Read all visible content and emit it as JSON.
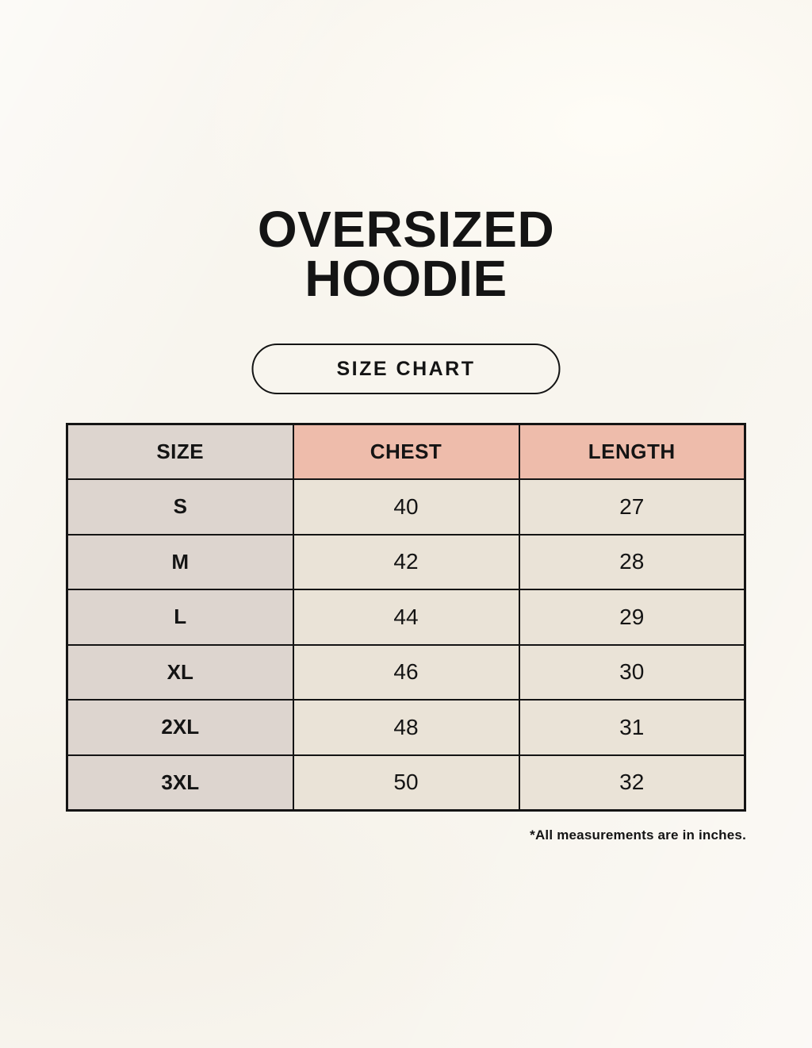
{
  "page": {
    "title": "OVERSIZED HOODIE",
    "badge_label": "SIZE CHART",
    "footnote": "*All measurements are in inches."
  },
  "table": {
    "headers": [
      "SIZE",
      "CHEST",
      "LENGTH"
    ],
    "rows": [
      {
        "size": "S",
        "chest": "40",
        "length": "27"
      },
      {
        "size": "M",
        "chest": "42",
        "length": "28"
      },
      {
        "size": "L",
        "chest": "44",
        "length": "29"
      },
      {
        "size": "XL",
        "chest": "46",
        "length": "30"
      },
      {
        "size": "2XL",
        "chest": "48",
        "length": "31"
      },
      {
        "size": "3XL",
        "chest": "50",
        "length": "32"
      }
    ]
  },
  "chart_data": {
    "type": "table",
    "title": "OVERSIZED HOODIE",
    "subtitle": "SIZE CHART",
    "columns": [
      "SIZE",
      "CHEST",
      "LENGTH"
    ],
    "rows": [
      [
        "S",
        40,
        27
      ],
      [
        "M",
        42,
        28
      ],
      [
        "L",
        44,
        29
      ],
      [
        "XL",
        46,
        30
      ],
      [
        "2XL",
        48,
        31
      ],
      [
        "3XL",
        50,
        32
      ]
    ],
    "units": "inches",
    "note": "*All measurements are in inches."
  },
  "colors": {
    "background": "#f8f5ee",
    "size_column_gray": "#ddd5cf",
    "header_pink": "#eebcab",
    "data_cell_cream": "#eae3d7",
    "border_black": "#141414",
    "text_black": "#141414"
  }
}
